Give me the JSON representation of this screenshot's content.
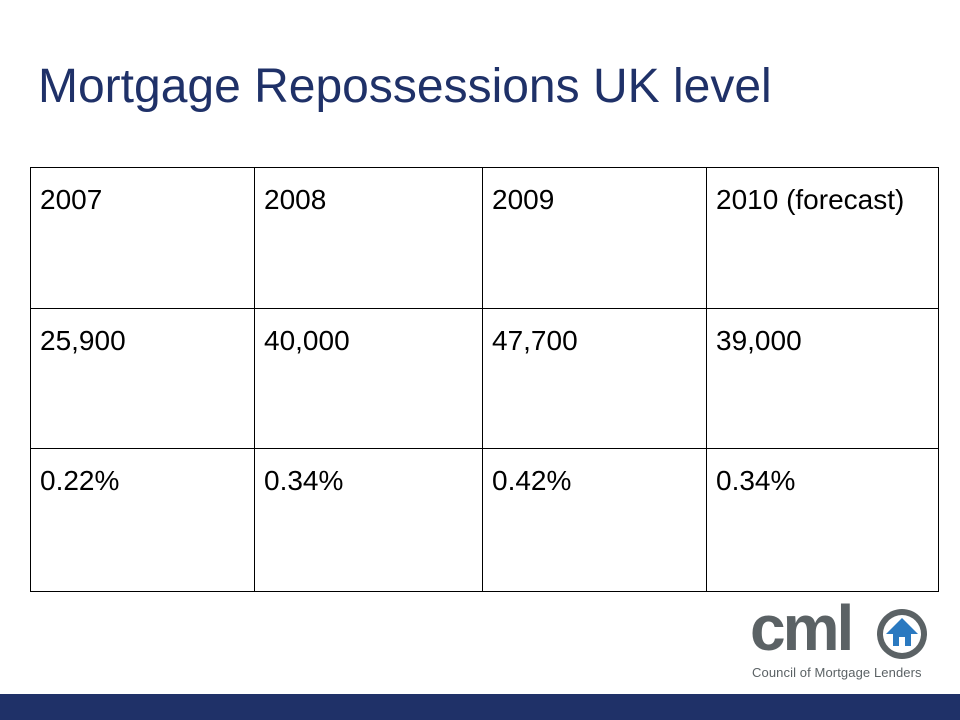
{
  "slide": {
    "title": "Mortgage Repossessions UK level"
  },
  "table": {
    "rows": [
      [
        "2007",
        "2008",
        "2009",
        "2010 (forecast)"
      ],
      [
        "25,900",
        "40,000",
        "47,700",
        "39,000"
      ],
      [
        "0.22%",
        "0.34%",
        "0.42%",
        "0.34%"
      ]
    ]
  },
  "logo": {
    "wordmark": "cml",
    "tagline": "Council of Mortgage Lenders",
    "icon": "house-arrow-icon"
  },
  "colors": {
    "title": "#1f3168",
    "bar": "#1f3168",
    "logo_grey": "#5b6265",
    "logo_blue": "#2a79c0"
  }
}
